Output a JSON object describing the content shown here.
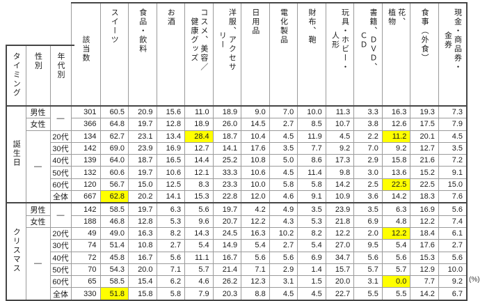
{
  "chart_data": {
    "type": "table",
    "unit": "(%)",
    "highlight_color": "#ffff00",
    "header": {
      "timing": "タイミング",
      "gender": "性別",
      "age": "年代別",
      "n": "該当数",
      "categories": [
        "スイーツ",
        "食品・飲料",
        "お酒",
        "コスメ、美容／\n健康グッズ",
        "洋服、アクセサ\nリー",
        "日用品",
        "電化製品",
        "財布、鞄",
        "玩具・ホビー・\n人形",
        "書籍、ＤＶＤ、\nＣＤ",
        "花、\n植物",
        "食事（外食）",
        "現金・商品券・\n金券"
      ]
    },
    "sections": [
      {
        "timing": "誕生日",
        "age_dash": "—",
        "gender_dash": "—",
        "rows": [
          {
            "gender": "男性",
            "n": "301",
            "values": [
              "60.5",
              "20.9",
              "15.6",
              "11.0",
              "18.9",
              "9.0",
              "7.0",
              "10.0",
              "11.3",
              "3.3",
              "16.3",
              "19.3",
              "7.3"
            ],
            "hl": []
          },
          {
            "gender": "女性",
            "n": "366",
            "values": [
              "64.8",
              "19.7",
              "12.8",
              "18.9",
              "26.0",
              "14.5",
              "2.7",
              "8.5",
              "10.7",
              "3.8",
              "12.6",
              "17.5",
              "7.9"
            ],
            "hl": []
          },
          {
            "age": "20代",
            "n": "134",
            "values": [
              "62.7",
              "23.1",
              "13.4",
              "28.4",
              "18.7",
              "10.4",
              "4.5",
              "11.9",
              "4.5",
              "2.2",
              "11.2",
              "20.1",
              "4.5"
            ],
            "hl": [
              3,
              10
            ]
          },
          {
            "age": "30代",
            "n": "142",
            "values": [
              "69.0",
              "23.9",
              "16.9",
              "12.7",
              "14.1",
              "17.6",
              "3.5",
              "7.7",
              "9.2",
              "7.0",
              "9.2",
              "12.7",
              "3.5"
            ],
            "hl": []
          },
          {
            "age": "40代",
            "n": "139",
            "values": [
              "64.0",
              "18.7",
              "16.5",
              "14.4",
              "25.2",
              "10.8",
              "5.0",
              "8.6",
              "17.3",
              "2.9",
              "15.8",
              "21.6",
              "7.2"
            ],
            "hl": []
          },
          {
            "age": "50代",
            "n": "132",
            "values": [
              "60.6",
              "19.7",
              "10.6",
              "12.1",
              "33.3",
              "10.6",
              "4.5",
              "11.4",
              "9.8",
              "3.0",
              "13.6",
              "15.2",
              "9.1"
            ],
            "hl": []
          },
          {
            "age": "60代",
            "n": "120",
            "values": [
              "56.7",
              "15.0",
              "12.5",
              "8.3",
              "23.3",
              "10.0",
              "5.8",
              "5.8",
              "14.2",
              "2.5",
              "22.5",
              "22.5",
              "15.0"
            ],
            "hl": [
              10
            ]
          },
          {
            "age": "全体",
            "n": "667",
            "values": [
              "62.8",
              "20.2",
              "14.1",
              "15.3",
              "22.8",
              "12.0",
              "4.6",
              "9.1",
              "10.9",
              "3.6",
              "14.2",
              "18.3",
              "7.6"
            ],
            "hl": [
              0
            ]
          }
        ]
      },
      {
        "timing": "クリスマス",
        "age_dash": "—",
        "gender_dash": "—",
        "rows": [
          {
            "gender": "男性",
            "n": "142",
            "values": [
              "58.5",
              "19.7",
              "6.3",
              "5.6",
              "19.7",
              "4.2",
              "4.9",
              "3.5",
              "23.9",
              "3.5",
              "6.3",
              "16.9",
              "5.6"
            ],
            "hl": []
          },
          {
            "gender": "女性",
            "n": "188",
            "values": [
              "46.8",
              "12.8",
              "5.3",
              "9.6",
              "20.7",
              "12.2",
              "4.3",
              "5.3",
              "21.8",
              "6.9",
              "4.8",
              "12.2",
              "7.4"
            ],
            "hl": []
          },
          {
            "age": "20代",
            "n": "49",
            "values": [
              "49.0",
              "16.3",
              "8.2",
              "14.3",
              "24.5",
              "16.3",
              "10.2",
              "8.2",
              "12.2",
              "2.0",
              "12.2",
              "18.4",
              "6.1"
            ],
            "hl": [
              10
            ]
          },
          {
            "age": "30代",
            "n": "74",
            "values": [
              "51.4",
              "10.8",
              "2.7",
              "5.4",
              "14.9",
              "5.4",
              "2.7",
              "5.4",
              "27.0",
              "9.5",
              "5.4",
              "17.6",
              "2.7"
            ],
            "hl": []
          },
          {
            "age": "40代",
            "n": "72",
            "values": [
              "45.8",
              "16.7",
              "5.6",
              "11.1",
              "16.7",
              "5.6",
              "5.6",
              "6.9",
              "34.7",
              "5.6",
              "5.6",
              "15.3",
              "5.6"
            ],
            "hl": []
          },
          {
            "age": "50代",
            "n": "70",
            "values": [
              "54.3",
              "20.0",
              "7.1",
              "5.7",
              "21.4",
              "7.1",
              "2.9",
              "1.4",
              "15.7",
              "5.7",
              "5.7",
              "12.9",
              "10.0"
            ],
            "hl": []
          },
          {
            "age": "60代",
            "n": "65",
            "values": [
              "58.5",
              "15.4",
              "6.2",
              "4.6",
              "26.2",
              "12.3",
              "3.1",
              "1.5",
              "20.0",
              "3.1",
              "0.0",
              "7.7",
              "9.2"
            ],
            "hl": [
              10
            ]
          },
          {
            "age": "全体",
            "n": "330",
            "values": [
              "51.8",
              "15.8",
              "5.8",
              "7.9",
              "20.3",
              "8.8",
              "4.5",
              "4.5",
              "22.7",
              "5.5",
              "5.5",
              "14.2",
              "6.7"
            ],
            "hl": [
              0
            ]
          }
        ]
      }
    ]
  }
}
